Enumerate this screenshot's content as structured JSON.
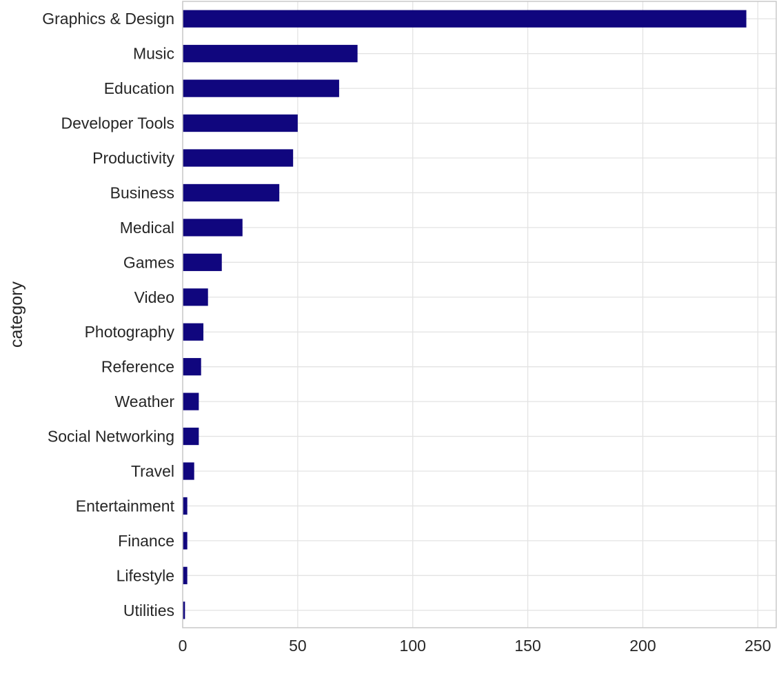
{
  "chart_data": {
    "type": "bar",
    "orientation": "horizontal",
    "categories": [
      "Graphics & Design",
      "Music",
      "Education",
      "Developer Tools",
      "Productivity",
      "Business",
      "Medical",
      "Games",
      "Video",
      "Photography",
      "Reference",
      "Weather",
      "Social Networking",
      "Travel",
      "Entertainment",
      "Finance",
      "Lifestyle",
      "Utilities"
    ],
    "values": [
      245,
      76,
      68,
      50,
      48,
      42,
      26,
      17,
      11,
      9,
      8,
      7,
      7,
      5,
      2,
      2,
      2,
      1
    ],
    "xlabel": "",
    "ylabel": "category",
    "xlim": [
      0,
      258
    ],
    "xticks": [
      "0",
      "50",
      "100",
      "150",
      "200",
      "250"
    ],
    "grid": true,
    "legend": "none",
    "colors": {
      "bar": "#10067e",
      "grid": "#e3e3e3",
      "spine": "#c8c8c8",
      "text": "#262626"
    }
  }
}
